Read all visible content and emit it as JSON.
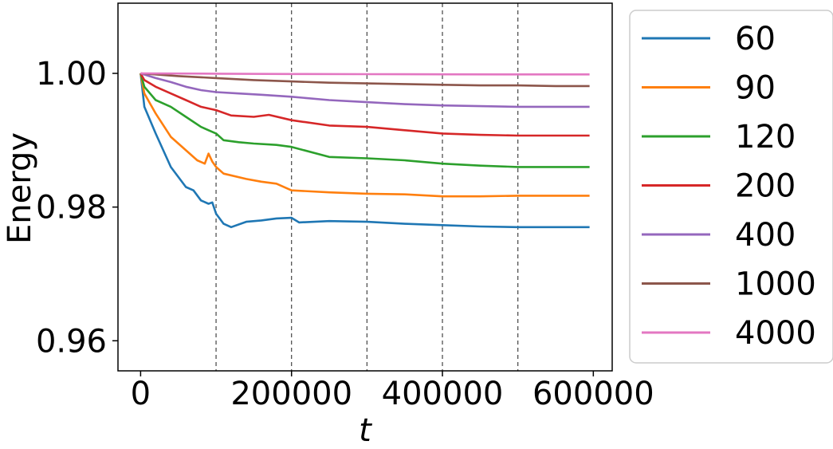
{
  "chart_data": {
    "type": "line",
    "xlabel": "t",
    "ylabel": "Energy",
    "xlim": [
      -30000,
      625000
    ],
    "ylim": [
      0.9555,
      1.0105
    ],
    "xticks": [
      0,
      200000,
      400000,
      600000
    ],
    "xtick_labels": [
      "0",
      "200000",
      "400000",
      "600000"
    ],
    "yticks": [
      0.96,
      0.98,
      1.0
    ],
    "ytick_labels": [
      "0.96",
      "0.98",
      "1.00"
    ],
    "vlines": [
      100000,
      200000,
      300000,
      400000,
      500000
    ],
    "legend_position": "outside-right",
    "grid": false,
    "series": [
      {
        "name": "60",
        "color": "#1f77b4",
        "x": [
          0,
          5000,
          20000,
          40000,
          60000,
          70000,
          80000,
          90000,
          95000,
          100000,
          110000,
          120000,
          140000,
          160000,
          180000,
          200000,
          210000,
          250000,
          300000,
          350000,
          400000,
          450000,
          500000,
          550000,
          595000
        ],
        "y": [
          1.0,
          0.995,
          0.991,
          0.986,
          0.983,
          0.9825,
          0.981,
          0.9805,
          0.9807,
          0.979,
          0.9775,
          0.977,
          0.9778,
          0.978,
          0.9783,
          0.9784,
          0.9777,
          0.9779,
          0.9778,
          0.9775,
          0.9773,
          0.9771,
          0.977,
          0.977,
          0.977
        ]
      },
      {
        "name": "90",
        "color": "#ff7f0e",
        "x": [
          0,
          5000,
          20000,
          40000,
          60000,
          75000,
          85000,
          90000,
          95000,
          100000,
          110000,
          140000,
          160000,
          180000,
          200000,
          250000,
          300000,
          350000,
          400000,
          450000,
          500000,
          550000,
          595000
        ],
        "y": [
          1.0,
          0.997,
          0.994,
          0.9905,
          0.9885,
          0.987,
          0.9865,
          0.988,
          0.9868,
          0.986,
          0.985,
          0.9842,
          0.9838,
          0.9835,
          0.9825,
          0.9822,
          0.982,
          0.9819,
          0.9816,
          0.9816,
          0.9817,
          0.9817,
          0.9817
        ]
      },
      {
        "name": "120",
        "color": "#2ca02c",
        "x": [
          0,
          5000,
          20000,
          40000,
          60000,
          80000,
          90000,
          100000,
          110000,
          130000,
          150000,
          180000,
          200000,
          250000,
          300000,
          350000,
          400000,
          450000,
          500000,
          550000,
          595000
        ],
        "y": [
          1.0,
          0.998,
          0.996,
          0.995,
          0.9935,
          0.992,
          0.9915,
          0.991,
          0.99,
          0.9897,
          0.9895,
          0.9893,
          0.989,
          0.9875,
          0.9873,
          0.987,
          0.9865,
          0.9862,
          0.986,
          0.986,
          0.986
        ]
      },
      {
        "name": "200",
        "color": "#d62728",
        "x": [
          0,
          5000,
          20000,
          40000,
          60000,
          80000,
          100000,
          120000,
          150000,
          170000,
          200000,
          250000,
          300000,
          350000,
          400000,
          450000,
          500000,
          550000,
          595000
        ],
        "y": [
          1.0,
          0.999,
          0.998,
          0.997,
          0.996,
          0.995,
          0.9945,
          0.9937,
          0.9935,
          0.9938,
          0.993,
          0.9922,
          0.992,
          0.9915,
          0.991,
          0.9908,
          0.9907,
          0.9907,
          0.9907
        ]
      },
      {
        "name": "400",
        "color": "#9467bd",
        "x": [
          0,
          20000,
          40000,
          60000,
          80000,
          100000,
          130000,
          160000,
          200000,
          250000,
          300000,
          350000,
          400000,
          450000,
          500000,
          550000,
          595000
        ],
        "y": [
          1.0,
          0.9993,
          0.9987,
          0.998,
          0.9975,
          0.9972,
          0.997,
          0.9968,
          0.9965,
          0.996,
          0.9957,
          0.9954,
          0.9952,
          0.9951,
          0.995,
          0.995,
          0.995
        ]
      },
      {
        "name": "1000",
        "color": "#8c564b",
        "x": [
          0,
          50000,
          100000,
          150000,
          200000,
          250000,
          300000,
          350000,
          400000,
          450000,
          500000,
          550000,
          595000
        ],
        "y": [
          1.0,
          0.9996,
          0.9993,
          0.999,
          0.9988,
          0.9986,
          0.9985,
          0.9984,
          0.9983,
          0.9982,
          0.9982,
          0.9981,
          0.9981
        ]
      },
      {
        "name": "4000",
        "color": "#e377c2",
        "x": [
          0,
          100000,
          200000,
          300000,
          400000,
          500000,
          595000
        ],
        "y": [
          1.0,
          0.99995,
          0.9999,
          0.99988,
          0.99986,
          0.99985,
          0.99985
        ]
      }
    ]
  }
}
